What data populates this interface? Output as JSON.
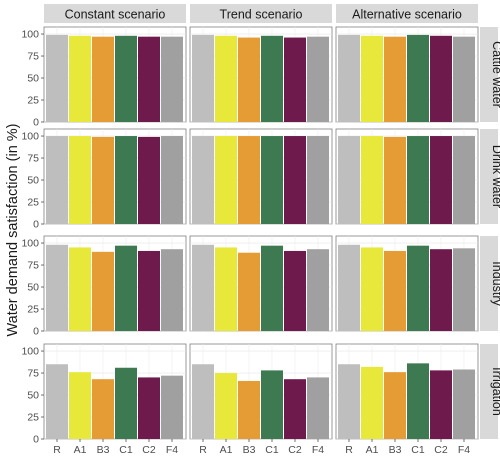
{
  "chart_data": {
    "type": "bar",
    "ylabel": "Water demand satisfaction (in %)",
    "xlabel": "",
    "categories": [
      "R",
      "A1",
      "B3",
      "C1",
      "C2",
      "F4"
    ],
    "colors": [
      "#bebebe",
      "#e8e83a",
      "#e69c35",
      "#3d7a52",
      "#6e1a4c",
      "#a0a0a0"
    ],
    "columns": [
      "Constant scenario",
      "Trend scenario",
      "Alternative scenario"
    ],
    "rows": [
      "Cattle water",
      "Drink water",
      "Industry",
      "Irrigation"
    ],
    "ylim": [
      0,
      108
    ],
    "yticks": [
      0,
      25,
      50,
      75,
      100
    ],
    "panels": [
      {
        "row": "Cattle water",
        "column": "Constant scenario",
        "values": [
          99,
          98,
          97,
          98,
          97,
          97
        ]
      },
      {
        "row": "Cattle water",
        "column": "Trend scenario",
        "values": [
          99,
          98,
          96,
          98,
          96,
          97
        ]
      },
      {
        "row": "Cattle water",
        "column": "Alternative scenario",
        "values": [
          99,
          98,
          97,
          99,
          98,
          97
        ]
      },
      {
        "row": "Drink water",
        "column": "Constant scenario",
        "values": [
          100,
          100,
          99,
          100,
          99,
          100
        ]
      },
      {
        "row": "Drink water",
        "column": "Trend scenario",
        "values": [
          100,
          100,
          100,
          100,
          100,
          100
        ]
      },
      {
        "row": "Drink water",
        "column": "Alternative scenario",
        "values": [
          100,
          100,
          99,
          100,
          100,
          100
        ]
      },
      {
        "row": "Industry",
        "column": "Constant scenario",
        "values": [
          98,
          95,
          90,
          97,
          91,
          93
        ]
      },
      {
        "row": "Industry",
        "column": "Trend scenario",
        "values": [
          98,
          95,
          89,
          97,
          91,
          93
        ]
      },
      {
        "row": "Industry",
        "column": "Alternative scenario",
        "values": [
          98,
          95,
          91,
          97,
          93,
          94
        ]
      },
      {
        "row": "Irrigation",
        "column": "Constant scenario",
        "values": [
          85,
          76,
          68,
          81,
          70,
          72
        ]
      },
      {
        "row": "Irrigation",
        "column": "Trend scenario",
        "values": [
          85,
          75,
          66,
          78,
          68,
          70
        ]
      },
      {
        "row": "Irrigation",
        "column": "Alternative scenario",
        "values": [
          85,
          82,
          76,
          86,
          78,
          79
        ]
      }
    ],
    "grid": true,
    "legend": "none"
  }
}
